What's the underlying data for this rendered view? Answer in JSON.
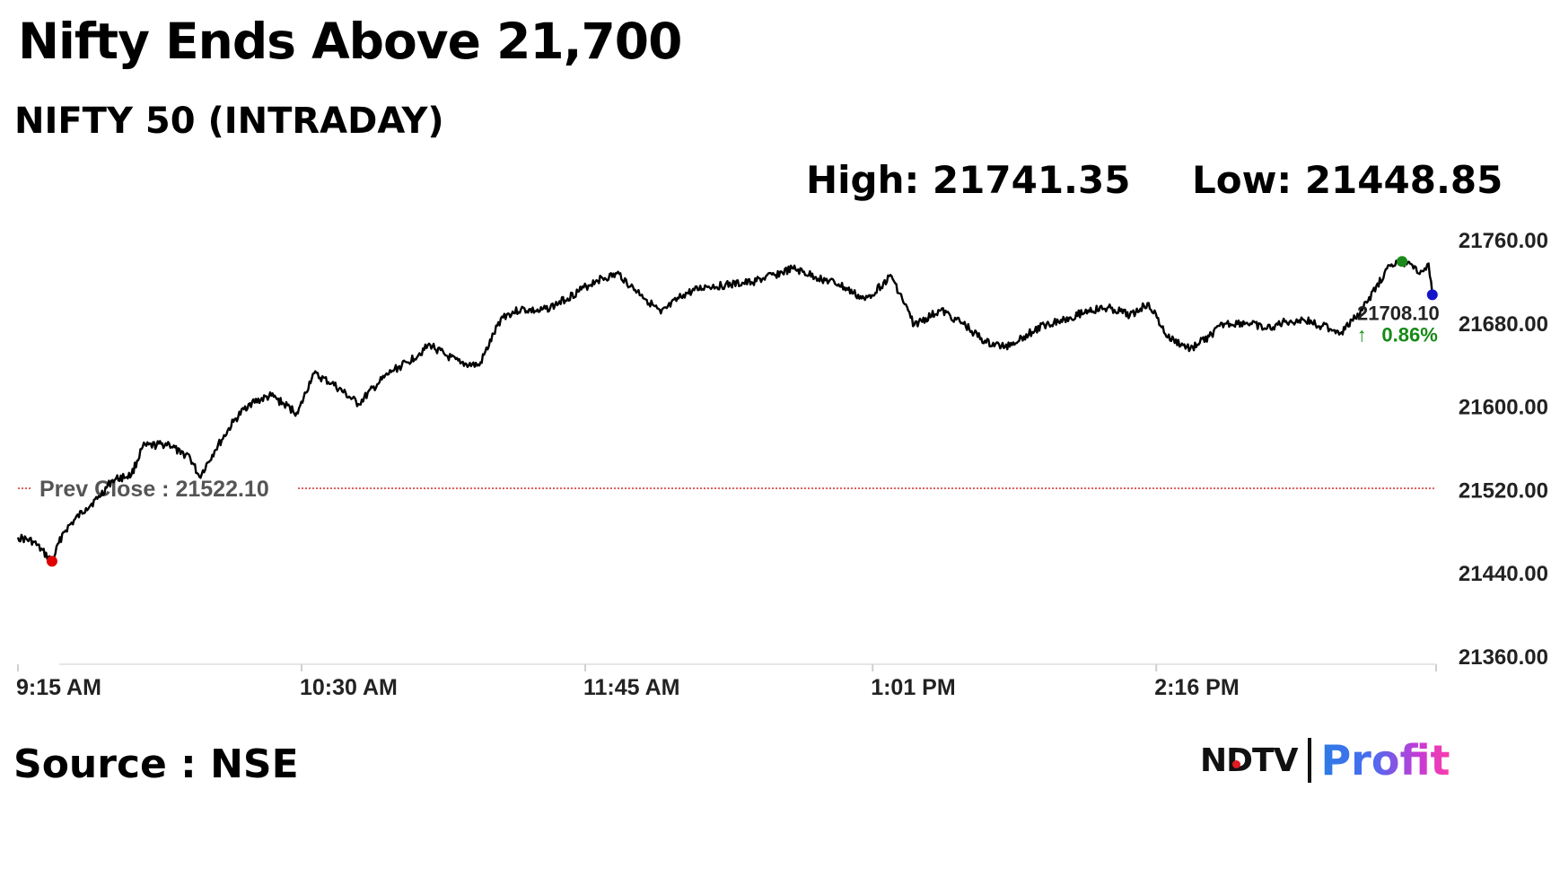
{
  "headline": "Nifty Ends Above 21,700",
  "source_text": "Source : NSE",
  "logo": {
    "brand": "NDTV",
    "sub_brand": "Profit"
  },
  "colors": {
    "line": "#000000",
    "prev_close_line": "#cc0000",
    "high_marker": "#1a8a1a",
    "low_marker": "#e00000",
    "last_marker": "#1414c8",
    "change_positive": "#168a16"
  },
  "chart_data": {
    "type": "line",
    "title": "NIFTY 50 (INTRADAY)",
    "stats": {
      "high": "High: 21741.35",
      "low": "Low: 21448.85"
    },
    "xlabel": "",
    "ylabel": "",
    "ylim": [
      21360,
      21760
    ],
    "y_ticks": [
      "21760.00",
      "21680.00",
      "21600.00",
      "21520.00",
      "21440.00",
      "21360.00"
    ],
    "x_range": [
      "9:15",
      "15:30"
    ],
    "x_ticks": [
      {
        "time": "9:15",
        "label": "9:15 AM"
      },
      {
        "time": "10:30",
        "label": "10:30 AM"
      },
      {
        "time": "11:45",
        "label": "11:45 AM"
      },
      {
        "time": "13:01",
        "label": "1:01 PM"
      },
      {
        "time": "14:16",
        "label": "2:16 PM"
      }
    ],
    "prev_close": {
      "value": 21522.1,
      "label": "Prev Close : 21522.10"
    },
    "last": {
      "value": 21708.1,
      "label": "21708.10",
      "change": "0.86%"
    },
    "series": [
      {
        "x": [
          "9:15",
          "9:19",
          "9:24",
          "9:27",
          "9:33",
          "9:36",
          "9:40",
          "9:45",
          "9:48",
          "9:55",
          "9:58",
          "10:00",
          "10:03",
          "10:07",
          "10:12",
          "10:16",
          "10:22",
          "10:29",
          "10:33",
          "10:38",
          "10:45",
          "10:50",
          "10:54",
          "10:58",
          "11:04",
          "11:08",
          "11:12",
          "11:17",
          "11:23",
          "11:28",
          "11:33",
          "11:37",
          "11:44",
          "11:48",
          "11:54",
          "11:57",
          "12:00",
          "12:05",
          "12:11",
          "12:17",
          "12:22",
          "12:29",
          "12:35",
          "12:40",
          "12:46",
          "12:52",
          "12:59",
          "13:06",
          "13:12",
          "13:19",
          "13:25",
          "13:31",
          "13:36",
          "13:41",
          "13:47",
          "13:53",
          "13:58",
          "14:04",
          "14:09",
          "14:14",
          "14:19",
          "14:25",
          "14:30",
          "14:34",
          "14:40",
          "14:45",
          "14:50",
          "14:55",
          "15:00",
          "15:05",
          "15:08",
          "15:12",
          "15:17",
          "15:21",
          "15:24",
          "15:26",
          "15:28",
          "15:29"
        ],
        "values": [
          21475,
          21471,
          21452,
          21480,
          21503,
          21512,
          21530,
          21535,
          21562,
          21565,
          21555,
          21555,
          21533,
          21558,
          21586,
          21603,
          21611,
          21594,
          21632,
          21623,
          21603,
          21622,
          21635,
          21643,
          21660,
          21650,
          21642,
          21640,
          21687,
          21694,
          21692,
          21698,
          21713,
          21722,
          21728,
          21716,
          21708,
          21690,
          21708,
          21716,
          21717,
          21720,
          21727,
          21733,
          21725,
          21718,
          21703,
          21726,
          21679,
          21693,
          21680,
          21662,
          21658,
          21668,
          21680,
          21686,
          21693,
          21695,
          21688,
          21700,
          21667,
          21656,
          21668,
          21680,
          21681,
          21675,
          21682,
          21684,
          21678,
          21672,
          21683,
          21702,
          21733,
          21740,
          21733,
          21731,
          21738,
          21708
        ]
      }
    ]
  }
}
